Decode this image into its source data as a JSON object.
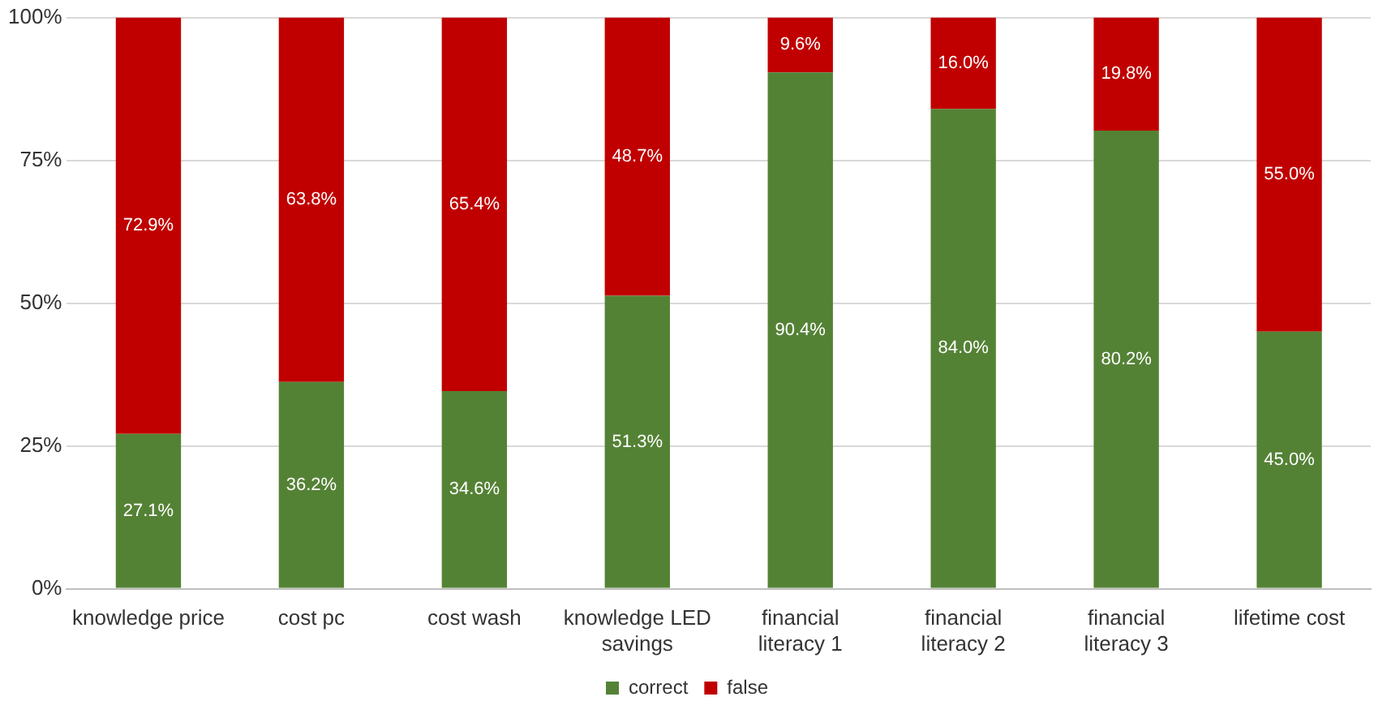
{
  "chart_data": {
    "type": "bar",
    "stacked": true,
    "categories": [
      "knowledge price",
      "cost pc",
      "cost wash",
      "knowledge LED savings",
      "financial literacy 1",
      "financial literacy 2",
      "financial literacy 3",
      "lifetime cost"
    ],
    "series": [
      {
        "name": "correct",
        "color": "#548235",
        "values": [
          27.1,
          36.2,
          34.6,
          51.3,
          90.4,
          84.0,
          80.2,
          45.0
        ],
        "value_labels": [
          "27.1%",
          "36.2%",
          "34.6%",
          "51.3%",
          "90.4%",
          "84.0%",
          "80.2%",
          "45.0%"
        ]
      },
      {
        "name": "false",
        "color": "#c00000",
        "values": [
          72.9,
          63.8,
          65.4,
          48.7,
          9.6,
          16.0,
          19.8,
          55.0
        ],
        "value_labels": [
          "72.9%",
          "63.8%",
          "65.4%",
          "48.7%",
          "9.6%",
          "16.0%",
          "19.8%",
          "55.0%"
        ]
      }
    ],
    "ylim": [
      0,
      100
    ],
    "yticks": [
      {
        "value": 0,
        "label": "0%"
      },
      {
        "value": 25,
        "label": "25%"
      },
      {
        "value": 50,
        "label": "50%"
      },
      {
        "value": 75,
        "label": "75%"
      },
      {
        "value": 100,
        "label": "100%"
      }
    ],
    "grid": "y",
    "legend": "bottom"
  }
}
